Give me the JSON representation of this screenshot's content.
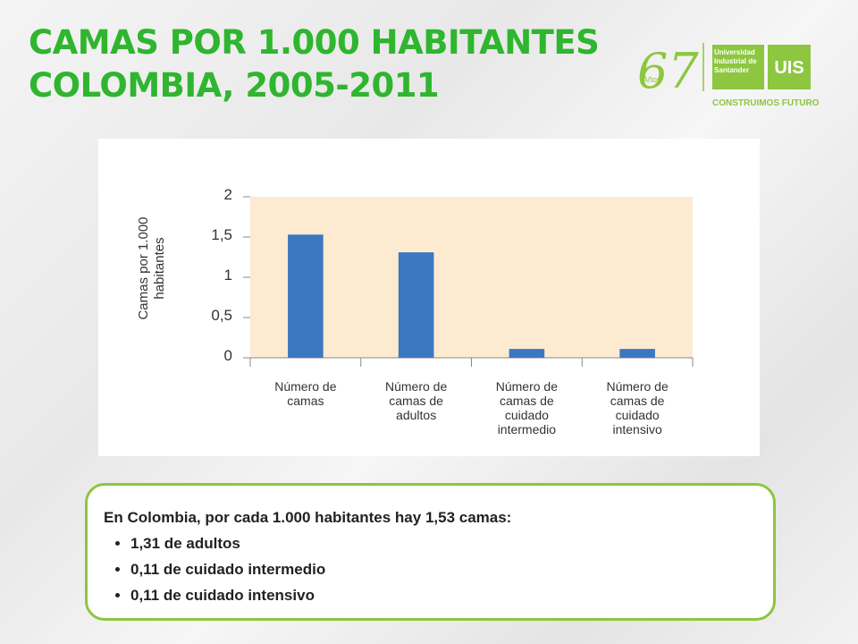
{
  "chart_data": {
    "type": "bar",
    "title": "CAMAS POR 1.000 HABITANTES COLOMBIA, 2005-2011",
    "y_label": "Camas por 1.000 habitantes",
    "categories": [
      "Número de camas",
      "Número de camas de adultos",
      "Número de camas de cuidado intermedio",
      "Número de camas de cuidado intensivo"
    ],
    "values": [
      1.53,
      1.31,
      0.11,
      0.11
    ],
    "color": "#3b78c1",
    "plot_background": "#fcebd0",
    "ylim": [
      0,
      2
    ],
    "yticks": [
      0,
      {
        "value": 0.5,
        "label": "0,5"
      },
      1,
      {
        "value": 1.5,
        "label": "1,5"
      },
      2
    ],
    "grid": false
  },
  "logo": {
    "years": "67",
    "years_word": "Años",
    "university": "Universidad Industrial de Santander",
    "acronym": "UIS",
    "slogan": "CONSTRUIMOS FUTURO"
  },
  "note": {
    "heading": "En Colombia, por cada 1.000 habitantes hay 1,53 camas:",
    "items": [
      "1,31 de adultos",
      "0,11 de cuidado intermedio",
      "0,11 de cuidado intensivo"
    ]
  }
}
